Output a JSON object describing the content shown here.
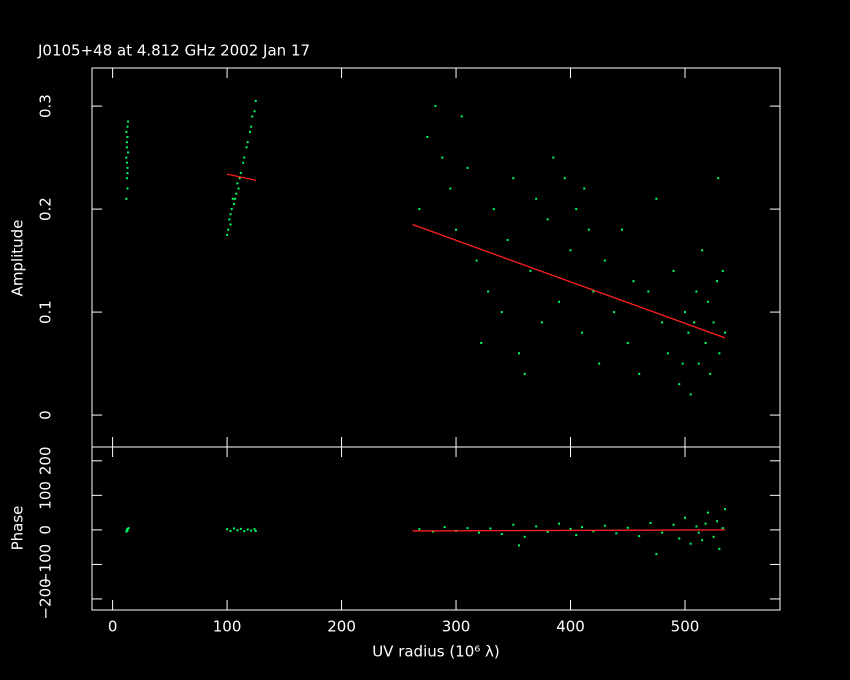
{
  "chart_data": [
    {
      "type": "scatter",
      "title": "J0105+48 at 4.812 GHz 2002 Jan 17",
      "y_label": "Amplitude",
      "ylim": [
        -0.031,
        0.337
      ],
      "yticks": [
        0,
        0.1,
        0.2,
        0.3
      ],
      "series": [
        {
          "color": "#00ff66",
          "mode": "points",
          "x": [
            12,
            13,
            12.5,
            13,
            12,
            13.5,
            12.5,
            13,
            12,
            13,
            13.5,
            12.5,
            13,
            12.5,
            100,
            101,
            102,
            103,
            104,
            106,
            107,
            108,
            110,
            111,
            112,
            114,
            115,
            117,
            118,
            120,
            121,
            122,
            124,
            125,
            103,
            105,
            109,
            268,
            275,
            282,
            288,
            295,
            300,
            305,
            310,
            318,
            322,
            328,
            333,
            340,
            345,
            350,
            355,
            360,
            365,
            370,
            375,
            380,
            385,
            390,
            395,
            400,
            405,
            410,
            412,
            420,
            425,
            430,
            438,
            445,
            450,
            455,
            460,
            468,
            475,
            480,
            485,
            490,
            495,
            500,
            503,
            505,
            510,
            512,
            515,
            518,
            520,
            522,
            525,
            528,
            530,
            533,
            535,
            529,
            498,
            508,
            416
          ],
          "values": [
            0.21,
            0.22,
            0.23,
            0.24,
            0.25,
            0.255,
            0.26,
            0.27,
            0.275,
            0.28,
            0.285,
            0.245,
            0.235,
            0.265,
            0.175,
            0.18,
            0.19,
            0.195,
            0.2,
            0.205,
            0.21,
            0.215,
            0.22,
            0.23,
            0.235,
            0.245,
            0.25,
            0.26,
            0.265,
            0.275,
            0.28,
            0.29,
            0.295,
            0.305,
            0.185,
            0.21,
            0.225,
            0.2,
            0.27,
            0.3,
            0.25,
            0.22,
            0.18,
            0.29,
            0.24,
            0.15,
            0.07,
            0.12,
            0.2,
            0.1,
            0.17,
            0.23,
            0.06,
            0.04,
            0.14,
            0.21,
            0.09,
            0.19,
            0.25,
            0.11,
            0.23,
            0.16,
            0.2,
            0.08,
            0.22,
            0.12,
            0.05,
            0.15,
            0.1,
            0.18,
            0.07,
            0.13,
            0.04,
            0.12,
            0.21,
            0.09,
            0.06,
            0.14,
            0.03,
            0.1,
            0.08,
            0.02,
            0.12,
            0.05,
            0.16,
            0.07,
            0.11,
            0.04,
            0.09,
            0.13,
            0.06,
            0.14,
            0.08,
            0.23,
            0.05,
            0.09,
            0.18
          ]
        },
        {
          "color": "#ff2020",
          "mode": "line",
          "x": [
            100,
            125,
            null,
            262,
            535
          ],
          "values": [
            0.234,
            0.228,
            null,
            0.185,
            0.075
          ]
        }
      ]
    },
    {
      "type": "scatter",
      "y_label": "Phase",
      "x_label": "UV radius  (10⁶ λ)",
      "xlim": [
        -18,
        583
      ],
      "xticks": [
        0,
        100,
        200,
        300,
        400,
        500
      ],
      "ylim": [
        -232,
        240
      ],
      "yticks": [
        {
          "value": -200,
          "label": "−200"
        },
        {
          "value": -100,
          "label": "−100"
        },
        0,
        100,
        200
      ],
      "series": [
        {
          "color": "#00ff66",
          "mode": "points",
          "x": [
            12,
            13,
            13,
            14,
            12.5,
            100,
            103,
            106,
            109,
            112,
            115,
            118,
            121,
            124,
            125,
            268,
            280,
            290,
            300,
            310,
            320,
            330,
            340,
            350,
            355,
            360,
            370,
            380,
            390,
            400,
            405,
            410,
            420,
            430,
            440,
            450,
            460,
            470,
            475,
            480,
            490,
            495,
            500,
            505,
            510,
            515,
            520,
            525,
            528,
            530,
            533,
            535,
            512,
            518
          ],
          "values": [
            -5,
            3,
            -2,
            5,
            0,
            2,
            -3,
            4,
            -1,
            3,
            -4,
            1,
            -2,
            2,
            -3,
            2,
            -5,
            8,
            -3,
            5,
            -8,
            4,
            -12,
            15,
            -45,
            -20,
            10,
            -6,
            18,
            3,
            -15,
            8,
            -4,
            12,
            -10,
            6,
            -18,
            20,
            -70,
            -8,
            15,
            -25,
            35,
            -40,
            10,
            -30,
            50,
            -20,
            25,
            -55,
            5,
            60,
            -8,
            18
          ]
        },
        {
          "color": "#ff2020",
          "mode": "line",
          "x": [
            262,
            535
          ],
          "values": [
            -3,
            0
          ]
        }
      ]
    }
  ]
}
